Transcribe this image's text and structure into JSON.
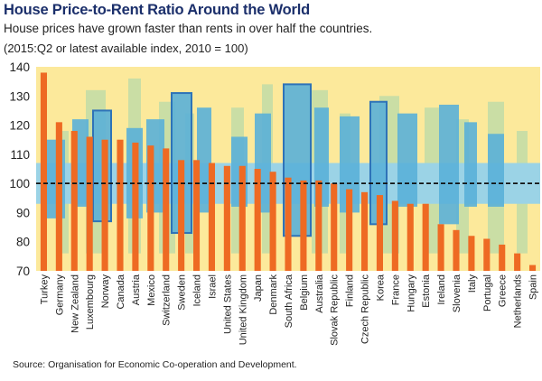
{
  "header": {
    "title": "House Price-to-Rent Ratio Around the World",
    "subtitle": "House prices have grown faster than rents in over half the countries.",
    "note": "(2015:Q2 or latest available index, 2010 = 100)"
  },
  "footer": {
    "source": "Source: Organisation for Economic Co-operation and Development."
  },
  "colors": {
    "background": "#fce99b",
    "bar": "#ee6a23",
    "band_light": "#9bd3e6",
    "band_mid": "#5ab0d8",
    "band_dark": "#2e73b8",
    "ghost_buildings": "#b9d9a8",
    "baseline": "#111111"
  },
  "chart_data": {
    "type": "bar",
    "title": "House Price-to-Rent Ratio Around the World",
    "xlabel": "",
    "ylabel": "",
    "ylim": [
      70,
      140
    ],
    "yticks": [
      70,
      80,
      90,
      100,
      110,
      120,
      130,
      140
    ],
    "reference_line": 100,
    "grid": false,
    "legend": "none",
    "categories": [
      "Turkey",
      "Germany",
      "New Zealand",
      "Luxembourg",
      "Norway",
      "Canada",
      "Austria",
      "Mexico",
      "Switzerland",
      "Sweden",
      "Iceland",
      "Israel",
      "United States",
      "United Kingdom",
      "Japan",
      "Denmark",
      "South Africa",
      "Belgium",
      "Australia",
      "Slovak Republic",
      "Finland",
      "Czech Republic",
      "Korea",
      "France",
      "Hungary",
      "Estonia",
      "Ireland",
      "Slovenia",
      "Italy",
      "Portugal",
      "Greece",
      "Netherlands",
      "Spain"
    ],
    "values": [
      138,
      121,
      118,
      116,
      115,
      115,
      114,
      113,
      112,
      108,
      108,
      107,
      106,
      106,
      105,
      104,
      102,
      101,
      101,
      100,
      98,
      97,
      96,
      94,
      93,
      93,
      86,
      84,
      82,
      81,
      79,
      76,
      72
    ]
  }
}
